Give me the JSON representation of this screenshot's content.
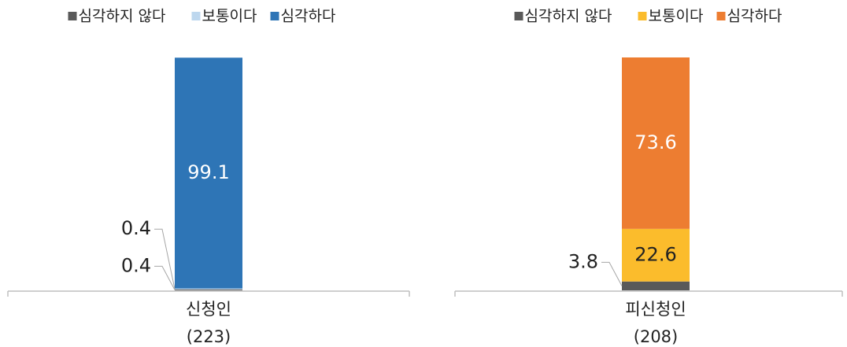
{
  "chart_data": [
    {
      "type": "bar",
      "stacked": true,
      "categories": [
        [
          "신청인",
          "(223)"
        ]
      ],
      "series": [
        {
          "name": "심각하지 않다",
          "color": "#595959",
          "values": [
            0.4
          ]
        },
        {
          "name": "보통이다",
          "color": "#bdd7ee",
          "values": [
            0.4
          ]
        },
        {
          "name": "심각하다",
          "color": "#2e75b6",
          "values": [
            99.1
          ]
        }
      ]
    },
    {
      "type": "bar",
      "stacked": true,
      "categories": [
        [
          "피신청인",
          "(208)"
        ]
      ],
      "series": [
        {
          "name": "심각하지 않다",
          "color": "#595959",
          "values": [
            3.8
          ]
        },
        {
          "name": "보통이다",
          "color": "#fbbc2c",
          "values": [
            22.6
          ]
        },
        {
          "name": "심각하다",
          "color": "#ed7d31",
          "values": [
            73.6
          ]
        }
      ]
    }
  ]
}
